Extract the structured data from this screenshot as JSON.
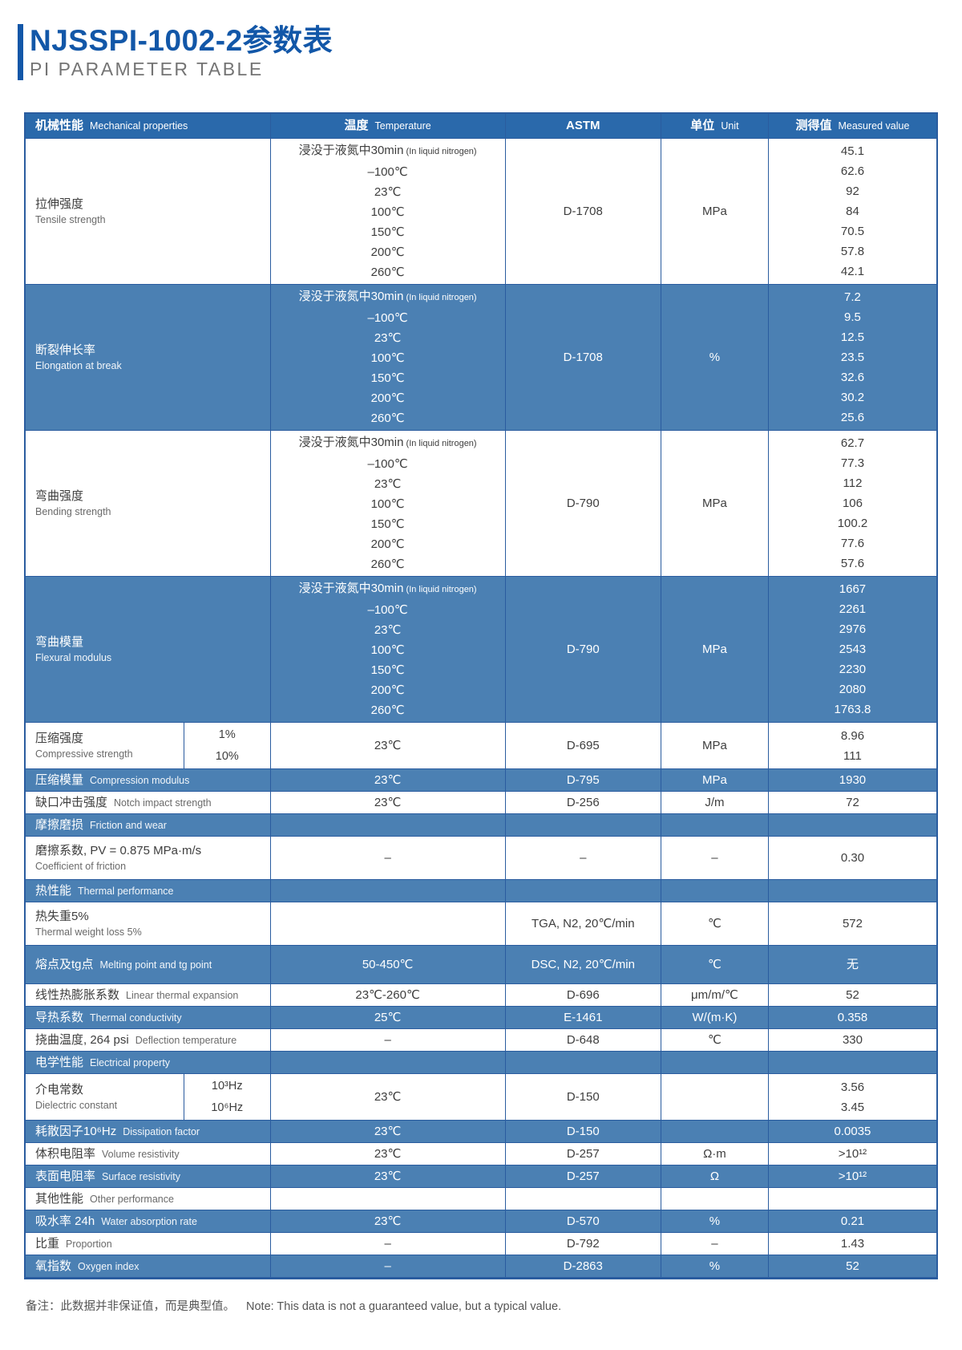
{
  "page": {
    "title": "NJSSPI-1002-2参数表",
    "subtitle": "PI PARAMETER TABLE",
    "note_zh": "备注：此数据并非保证值，而是典型值。",
    "note_en": "Note: This data is not a guaranteed value, but a typical value."
  },
  "colors": {
    "title_blue": "#1257A8",
    "subtitle_gray": "#747474",
    "header_bg": "#2A69AB",
    "row_blue": "#4B80B3",
    "border_blue": "#2A5C9F",
    "text_dark": "#3E3E3E",
    "text_gray": "#6A6A6A",
    "note_gray": "#555555"
  },
  "table": {
    "headers": [
      {
        "zh": "机械性能",
        "en": "Mechanical properties"
      },
      {
        "zh": "温度",
        "en": "Temperature"
      },
      {
        "zh": "ASTM",
        "en": ""
      },
      {
        "zh": "单位",
        "en": "Unit"
      },
      {
        "zh": "测得值",
        "en": "Measured value"
      }
    ],
    "block_temps": [
      {
        "main": "浸没于液氮中30min",
        "note": "(In liquid nitrogen)"
      },
      {
        "main": "–100℃"
      },
      {
        "main": "23℃"
      },
      {
        "main": "100℃"
      },
      {
        "main": "150℃"
      },
      {
        "main": "200℃"
      },
      {
        "main": "260℃"
      }
    ],
    "rows": [
      {
        "type": "block",
        "bg": "white",
        "zh": "拉伸强度",
        "en": "Tensile strength",
        "astm": "D-1708",
        "unit": "MPa",
        "values": [
          "45.1",
          "62.6",
          "92",
          "84",
          "70.5",
          "57.8",
          "42.1"
        ]
      },
      {
        "type": "block",
        "bg": "blue",
        "zh": "断裂伸长率",
        "en": "Elongation at break",
        "astm": "D-1708",
        "unit": "%",
        "values": [
          "7.2",
          "9.5",
          "12.5",
          "23.5",
          "32.6",
          "30.2",
          "25.6"
        ]
      },
      {
        "type": "block",
        "bg": "white",
        "zh": "弯曲强度",
        "en": "Bending strength",
        "astm": "D-790",
        "unit": "MPa",
        "values": [
          "62.7",
          "77.3",
          "112",
          "106",
          "100.2",
          "77.6",
          "57.6"
        ]
      },
      {
        "type": "block",
        "bg": "blue",
        "zh": "弯曲模量",
        "en": "Flexural modulus",
        "astm": "D-790",
        "unit": "MPa",
        "values": [
          "1667",
          "2261",
          "2976",
          "2543",
          "2230",
          "2080",
          "1763.8"
        ]
      },
      {
        "type": "split",
        "bg": "white",
        "zh": "压缩强度",
        "en": "Compressive strength",
        "subs": [
          "1%",
          "10%"
        ],
        "temp": "23℃",
        "astm": "D-695",
        "unit": "MPa",
        "values": [
          "8.96",
          "111"
        ]
      },
      {
        "type": "simple",
        "bg": "blue",
        "zh": "压缩模量",
        "en": "Compression modulus",
        "temp": "23℃",
        "astm": "D-795",
        "unit": "MPa",
        "value": "1930"
      },
      {
        "type": "simple",
        "bg": "white",
        "zh": "缺口冲击强度",
        "en": "Notch impact strength",
        "temp": "23℃",
        "astm": "D-256",
        "unit": "J/m",
        "value": "72"
      },
      {
        "type": "section",
        "bg": "blue",
        "zh": "摩擦磨损",
        "en": "Friction and wear"
      },
      {
        "type": "stacked",
        "bg": "white",
        "zh": "磨擦系数, PV = 0.875 MPa·m/s",
        "en": "Coefficient of friction",
        "temp": "–",
        "astm": "–",
        "unit": "–",
        "value": "0.30"
      },
      {
        "type": "section",
        "bg": "blue",
        "zh": "热性能",
        "en": "Thermal performance"
      },
      {
        "type": "stacked",
        "bg": "white",
        "zh": "热失重5%",
        "en": "Thermal weight loss 5%",
        "temp": "",
        "astm": "TGA,  N2,  20℃/min",
        "unit": "℃",
        "value": "572"
      },
      {
        "type": "simple",
        "bg": "blue",
        "tall": true,
        "zh": "熔点及tg点",
        "en": "Melting point and tg point",
        "temp": "50-450℃",
        "astm": "DSC,  N2,  20℃/min",
        "unit": "℃",
        "value": "无"
      },
      {
        "type": "simple",
        "bg": "white",
        "zh": "线性热膨胀系数",
        "en": "Linear thermal expansion",
        "temp": "23℃-260℃",
        "astm": "D-696",
        "unit": "μm/m/℃",
        "value": "52"
      },
      {
        "type": "simple",
        "bg": "blue",
        "zh": "导热系数",
        "en": "Thermal conductivity",
        "temp": "25℃",
        "astm": "E-1461",
        "unit": "W/(m·K)",
        "value": "0.358"
      },
      {
        "type": "simple",
        "bg": "white",
        "zh": "挠曲温度, 264 psi",
        "en": "Deflection temperature",
        "temp": "–",
        "astm": "D-648",
        "unit": "℃",
        "value": "330"
      },
      {
        "type": "section",
        "bg": "blue",
        "zh": "电学性能",
        "en": "Electrical property"
      },
      {
        "type": "split",
        "bg": "white",
        "zh": "介电常数",
        "en": "Dielectric constant",
        "subs": [
          "10³Hz",
          "10⁶Hz"
        ],
        "temp": "23℃",
        "astm": "D-150",
        "unit": "",
        "values": [
          "3.56",
          "3.45"
        ]
      },
      {
        "type": "simple",
        "bg": "blue",
        "zh": "耗散因子10⁶Hz",
        "en": "Dissipation factor",
        "temp": "23℃",
        "astm": "D-150",
        "unit": "",
        "value": "0.0035"
      },
      {
        "type": "simple",
        "bg": "white",
        "zh": "体积电阻率",
        "en": "Volume resistivity",
        "temp": "23℃",
        "astm": "D-257",
        "unit": "Ω·m",
        "value": ">10¹²"
      },
      {
        "type": "simple",
        "bg": "blue",
        "zh": "表面电阻率",
        "en": "Surface resistivity",
        "temp": "23℃",
        "astm": "D-257",
        "unit": "Ω",
        "value": ">10¹²"
      },
      {
        "type": "section",
        "bg": "white",
        "zh": "其他性能",
        "en": "Other performance"
      },
      {
        "type": "simple",
        "bg": "blue",
        "zh": "吸水率 24h",
        "en": "Water absorption rate",
        "temp": "23℃",
        "astm": "D-570",
        "unit": "%",
        "value": "0.21"
      },
      {
        "type": "simple",
        "bg": "white",
        "zh": "比重",
        "en": "Proportion",
        "temp": "–",
        "astm": "D-792",
        "unit": "–",
        "value": "1.43"
      },
      {
        "type": "simple",
        "bg": "blue",
        "zh": "氧指数",
        "en": "Oxygen index",
        "temp": "–",
        "astm": "D-2863",
        "unit": "%",
        "value": "52"
      }
    ]
  }
}
